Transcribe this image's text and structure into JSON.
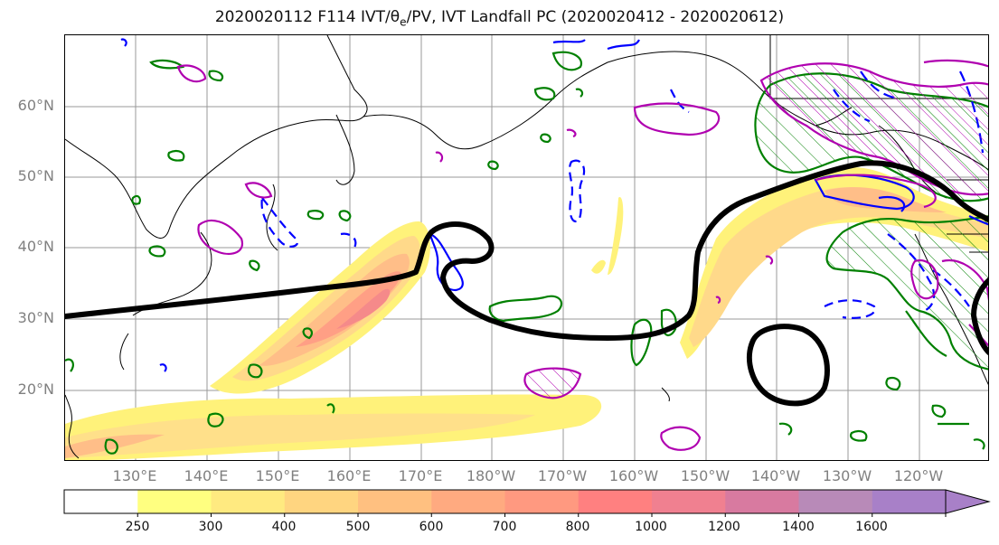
{
  "title": "2020020112 F114 IVT/θe/PV, IVT Landfall PC (2020020412 - 2020020612)",
  "map": {
    "lat_labels": [
      "60°N",
      "50°N",
      "40°N",
      "30°N",
      "20°N"
    ],
    "lon_labels": [
      "130°E",
      "140°E",
      "150°E",
      "160°E",
      "170°E",
      "180°W",
      "170°W",
      "160°W",
      "150°W",
      "140°W",
      "130°W",
      "120°W"
    ],
    "colors": {
      "ivt_contour": "#000000",
      "green_contour": "#008000",
      "blue_contour": "#0000ff",
      "magenta_contour": "#b000b0"
    }
  },
  "colorbar": {
    "levels": [
      "250",
      "300",
      "400",
      "500",
      "600",
      "700",
      "800",
      "1000",
      "1200",
      "1400",
      "1600"
    ],
    "colors": [
      "#ffffff",
      "#ffff80",
      "#ffea80",
      "#ffd580",
      "#ffc080",
      "#ffaa80",
      "#ff9980",
      "#ff8080",
      "#f08090",
      "#d87aa0",
      "#b88ab8",
      "#a880c8"
    ]
  }
}
